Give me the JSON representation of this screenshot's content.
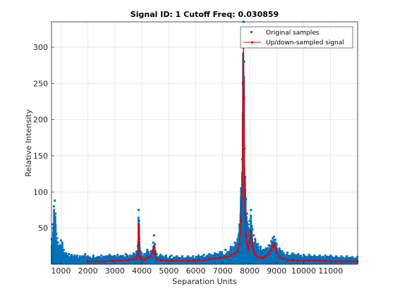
{
  "chart_data": {
    "type": "scatter",
    "title": "Signal ID: 1  Cutoff Freq: 0.030859",
    "xlabel": "Separation Units",
    "ylabel": "Relative Intensity",
    "xlim": [
      650,
      12000
    ],
    "ylim": [
      0,
      335
    ],
    "xticks": [
      1000,
      2000,
      3000,
      4000,
      5000,
      6000,
      7000,
      8000,
      9000,
      10000,
      11000
    ],
    "yticks": [
      50,
      100,
      150,
      200,
      250,
      300
    ],
    "grid": true,
    "legend_position": "top-right",
    "series": [
      {
        "name": "Original samples",
        "style": "dots",
        "color": "#0072BD",
        "x": [
          660,
          700,
          740,
          770,
          800,
          830,
          860,
          900,
          950,
          1000,
          1050,
          1100,
          1200,
          1300,
          1400,
          1500,
          1600,
          1700,
          1800,
          1900,
          2000,
          2200,
          2500,
          2800,
          3100,
          3400,
          3700,
          3800,
          3850,
          3880,
          3900,
          3920,
          3950,
          4000,
          4100,
          4200,
          4350,
          4420,
          4450,
          4480,
          4550,
          4700,
          4900,
          5100,
          5300,
          5500,
          5700,
          5900,
          6100,
          6300,
          6500,
          6700,
          6900,
          7100,
          7300,
          7450,
          7550,
          7620,
          7680,
          7720,
          7750,
          7770,
          7790,
          7810,
          7830,
          7860,
          7900,
          7950,
          8000,
          8050,
          8100,
          8150,
          8200,
          8300,
          8400,
          8500,
          8600,
          8700,
          8800,
          8850,
          8900,
          8950,
          9000,
          9100,
          9200,
          9400,
          9600,
          9800,
          10000,
          10200,
          10400,
          10600,
          10800,
          11000,
          11200,
          11400,
          11600,
          11800,
          11990
        ],
        "y": [
          35,
          55,
          80,
          88,
          70,
          42,
          36,
          30,
          25,
          33,
          30,
          20,
          15,
          14,
          13,
          12,
          12,
          11,
          11,
          14,
          11,
          12,
          12,
          13,
          13,
          14,
          15,
          17,
          25,
          75,
          60,
          22,
          18,
          15,
          14,
          20,
          18,
          30,
          40,
          28,
          14,
          13,
          12,
          12,
          11,
          11,
          11,
          11,
          12,
          13,
          14,
          15,
          17,
          20,
          24,
          30,
          35,
          55,
          105,
          145,
          300,
          335,
          280,
          160,
          120,
          90,
          70,
          55,
          60,
          75,
          48,
          40,
          35,
          28,
          24,
          20,
          22,
          26,
          32,
          36,
          38,
          34,
          28,
          22,
          18,
          16,
          15,
          14,
          13,
          13,
          12,
          12,
          12,
          12,
          11,
          11,
          11,
          10,
          10
        ]
      },
      {
        "name": "Up/down-sampled signal",
        "style": "line-markers",
        "color": "#E60000",
        "x": [
          2000,
          2300,
          2600,
          2900,
          3200,
          3500,
          3700,
          3800,
          3850,
          3880,
          3900,
          3920,
          3950,
          4000,
          4100,
          4200,
          4300,
          4400,
          4450,
          4480,
          4550,
          4700,
          4900,
          5100,
          5300,
          5500,
          5700,
          5900,
          6100,
          6300,
          6500,
          6700,
          6900,
          7100,
          7300,
          7450,
          7550,
          7620,
          7680,
          7720,
          7750,
          7770,
          7790,
          7810,
          7830,
          7860,
          7900,
          7950,
          8000,
          8050,
          8100,
          8150,
          8200,
          8300,
          8400,
          8500,
          8600,
          8700,
          8800,
          8850,
          8900,
          8950,
          9000,
          9100,
          9200,
          9400,
          9600,
          9800,
          10000,
          10200,
          10400,
          10600,
          10800,
          11000,
          11200,
          11400,
          11600,
          11800,
          11990
        ],
        "y": [
          4,
          4,
          4,
          5,
          5,
          6,
          7,
          8,
          15,
          55,
          35,
          10,
          8,
          7,
          6,
          9,
          10,
          18,
          25,
          15,
          7,
          6,
          5,
          5,
          5,
          5,
          5,
          5,
          6,
          6,
          7,
          8,
          9,
          10,
          12,
          15,
          18,
          28,
          60,
          100,
          250,
          300,
          230,
          110,
          70,
          40,
          28,
          20,
          30,
          45,
          25,
          18,
          14,
          10,
          9,
          9,
          11,
          15,
          20,
          24,
          28,
          22,
          16,
          10,
          8,
          6,
          6,
          5,
          5,
          5,
          5,
          5,
          5,
          4,
          4,
          4,
          4,
          4,
          4
        ]
      }
    ]
  }
}
